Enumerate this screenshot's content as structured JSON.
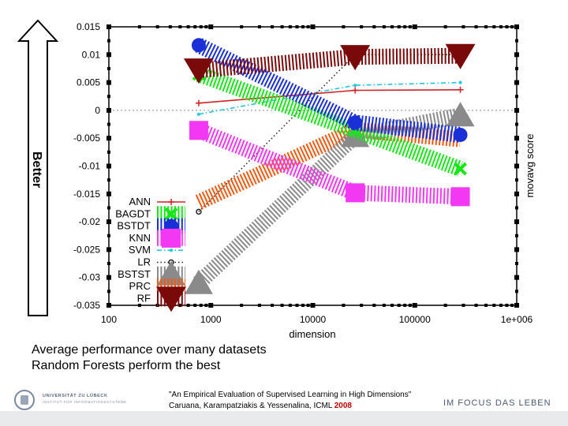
{
  "annotation": {
    "better": "Better"
  },
  "caption": {
    "line1": "Average performance over many datasets",
    "line2": "Random Forests perform the best"
  },
  "citation": {
    "line1": "\"An Empirical Evaluation of Supervised Learning in High Dimensions\"",
    "line2_prefix": "Caruana, Karampatziakis & Yessenalina, ICML ",
    "year": "2008"
  },
  "footer": {
    "university_line1": "UNIVERSITÄT ZU LÜBECK",
    "university_line2": "INSTITUT FÜR INFORMATIONSSYSTEME",
    "motto": "IM FOCUS DAS LEBEN"
  },
  "chart_data": {
    "type": "line",
    "xlabel": "dimension",
    "ylabel": "movavg score",
    "xscale": "log",
    "xlim": [
      100,
      1000000
    ],
    "ylim": [
      -0.035,
      0.015
    ],
    "x_ticks": [
      "100",
      "1000",
      "10000",
      "100000",
      "1e+006"
    ],
    "x_tick_values": [
      100,
      1000,
      10000,
      100000,
      1000000
    ],
    "y_ticks": [
      "0.015",
      "0.01",
      "0.005",
      "0",
      "-0.005",
      "-0.01",
      "-0.015",
      "-0.02",
      "-0.025",
      "-0.03",
      "-0.035"
    ],
    "y_tick_values": [
      0.015,
      0.01,
      0.005,
      0,
      -0.005,
      -0.01,
      -0.015,
      -0.02,
      -0.025,
      -0.03,
      -0.035
    ],
    "zero_line": true,
    "legend_position": "bottom-left",
    "x": [
      761,
      26000,
      280000
    ],
    "series": [
      {
        "name": "ANN",
        "values": [
          0.0013,
          0.0036,
          0.0037
        ],
        "color": "#d62020",
        "marker": "plus",
        "stroke": "solid"
      },
      {
        "name": "BAGDT",
        "values": [
          0.0065,
          -0.0036,
          -0.0105
        ],
        "color": "#19e619",
        "marker": "x",
        "stroke": "hatched"
      },
      {
        "name": "BSTDT",
        "values": [
          0.0117,
          -0.0022,
          -0.0044
        ],
        "color": "#1a2fd6",
        "marker": "asterisk",
        "stroke": "hatched"
      },
      {
        "name": "KNN",
        "values": [
          -0.0036,
          -0.0148,
          -0.0155
        ],
        "color": "#f238f2",
        "marker": "square",
        "stroke": "hatched"
      },
      {
        "name": "SVM",
        "values": [
          -0.0007,
          0.0045,
          0.005
        ],
        "color": "#20c8e6",
        "marker": "dot",
        "stroke": "dashdot"
      },
      {
        "name": "LR",
        "values": [
          -0.0182,
          0.01,
          0.01
        ],
        "color": "#202020",
        "marker": "circle",
        "stroke": "dotted"
      },
      {
        "name": "BSTST",
        "values": [
          -0.031,
          -0.0046,
          -0.0009
        ],
        "color": "#8a8a8a",
        "marker": "triangle",
        "stroke": "hatched"
      },
      {
        "name": "PRC",
        "values": [
          -0.0165,
          -0.0035,
          -0.0052
        ],
        "color": "#f05a12",
        "marker": "none",
        "stroke": "hatched"
      },
      {
        "name": "RF",
        "values": [
          0.0072,
          0.0096,
          0.0098
        ],
        "color": "#7a0a0a",
        "marker": "triangle-down",
        "stroke": "hatched"
      }
    ]
  }
}
